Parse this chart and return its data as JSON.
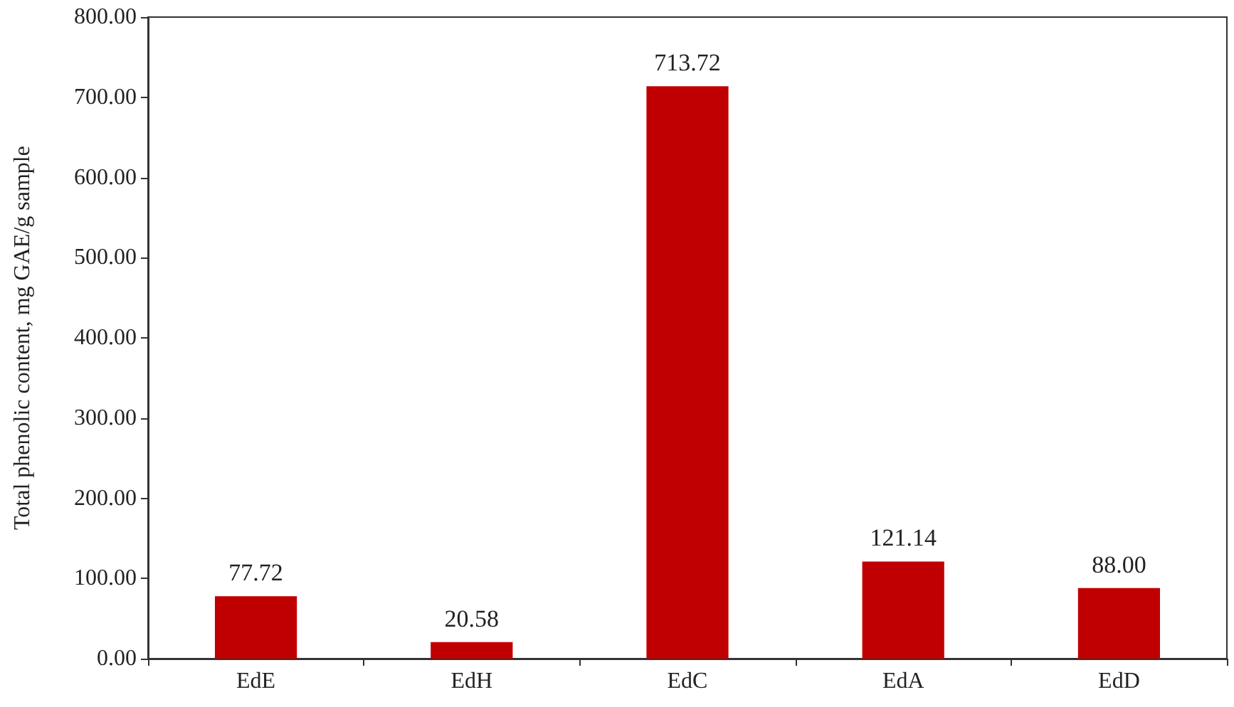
{
  "chart_data": {
    "type": "bar",
    "ylabel": "Total phenolic content, mg GAE/g sample",
    "categories": [
      "EdE",
      "EdH",
      "EdC",
      "EdA",
      "EdD"
    ],
    "values": [
      77.72,
      20.58,
      713.72,
      121.14,
      88.0
    ],
    "value_labels": [
      "77.72",
      "20.58",
      "713.72",
      "121.14",
      "88.00"
    ],
    "color": "#c00000",
    "ylim": [
      0,
      800
    ],
    "yticks": [
      {
        "value": 0,
        "label": "0.00"
      },
      {
        "value": 100,
        "label": "100.00"
      },
      {
        "value": 200,
        "label": "200.00"
      },
      {
        "value": 300,
        "label": "300.00"
      },
      {
        "value": 400,
        "label": "400.00"
      },
      {
        "value": 500,
        "label": "500.00"
      },
      {
        "value": 600,
        "label": "600.00"
      },
      {
        "value": 700,
        "label": "700.00"
      },
      {
        "value": 800,
        "label": "800.00"
      }
    ],
    "grid": false
  }
}
